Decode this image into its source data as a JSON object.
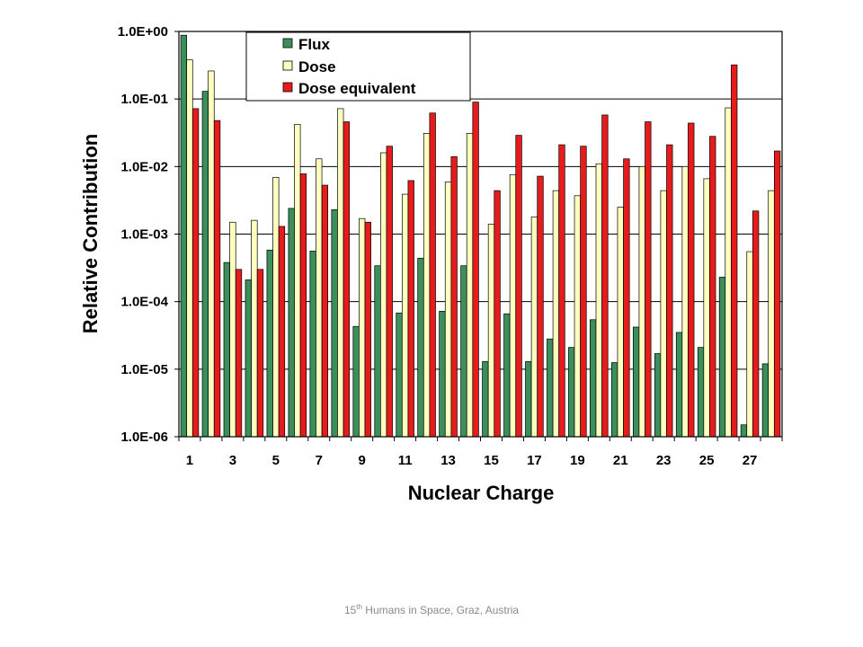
{
  "footer": {
    "superscript_num": "15",
    "superscript_suffix": "th",
    "text": " Humans in Space, Graz, Austria"
  },
  "chart_data": {
    "type": "bar",
    "title": "",
    "xlabel": "Nuclear Charge",
    "ylabel": "Relative Contribution",
    "yscale": "log",
    "ylim": [
      1e-06,
      1
    ],
    "yticks": [
      "1.0E-06",
      "1.0E-05",
      "1.0E-04",
      "1.0E-03",
      "1.0E-02",
      "1.0E-01",
      "1.0E+00"
    ],
    "xtick_labels": [
      "1",
      "3",
      "5",
      "7",
      "9",
      "11",
      "13",
      "15",
      "17",
      "19",
      "21",
      "23",
      "25",
      "27"
    ],
    "categories": [
      1,
      2,
      3,
      4,
      5,
      6,
      7,
      8,
      9,
      10,
      11,
      12,
      13,
      14,
      15,
      16,
      17,
      18,
      19,
      20,
      21,
      22,
      23,
      24,
      25,
      26,
      27,
      28
    ],
    "grid": "horizontal major",
    "legend": {
      "position": "top-left inside"
    },
    "series": [
      {
        "name": "Flux",
        "color": "#3a8f5a",
        "values": [
          0.88,
          0.13,
          0.00038,
          0.00021,
          0.00058,
          0.0024,
          0.00056,
          0.0023,
          4.3e-05,
          0.00034,
          6.8e-05,
          0.00044,
          7.2e-05,
          0.00034,
          1.3e-05,
          6.6e-05,
          1.3e-05,
          2.8e-05,
          2.1e-05,
          5.4e-05,
          1.25e-05,
          4.2e-05,
          1.7e-05,
          3.5e-05,
          2.1e-05,
          0.00023,
          1.5e-06,
          1.2e-05
        ]
      },
      {
        "name": "Dose",
        "color": "#ffffc0",
        "values": [
          0.38,
          0.26,
          0.0015,
          0.0016,
          0.0069,
          0.042,
          0.013,
          0.072,
          0.0017,
          0.016,
          0.0039,
          0.031,
          0.0059,
          0.031,
          0.0014,
          0.0076,
          0.0018,
          0.0044,
          0.0037,
          0.011,
          0.0025,
          0.01,
          0.0044,
          0.01,
          0.0066,
          0.074,
          0.00055,
          0.0044
        ]
      },
      {
        "name": "Dose equivalent",
        "color": "#e61c1c",
        "values": [
          0.072,
          0.048,
          0.0003,
          0.0003,
          0.0013,
          0.0078,
          0.0053,
          0.046,
          0.0015,
          0.02,
          0.0062,
          0.062,
          0.014,
          0.09,
          0.0044,
          0.029,
          0.0072,
          0.021,
          0.02,
          0.058,
          0.013,
          0.046,
          0.021,
          0.044,
          0.028,
          0.32,
          0.0022,
          0.017
        ]
      }
    ]
  }
}
